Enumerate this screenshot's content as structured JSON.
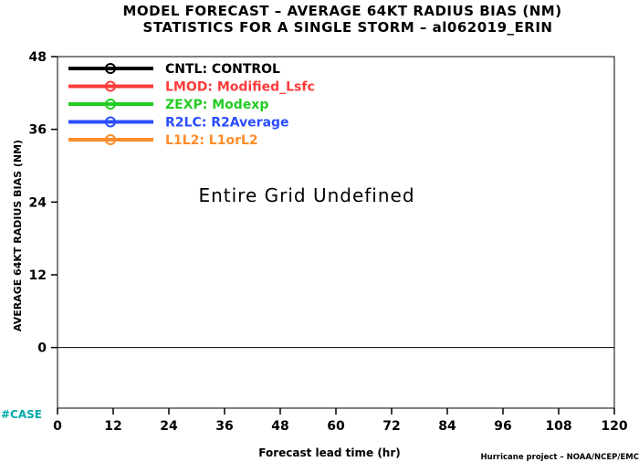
{
  "chart_data": {
    "type": "line",
    "title": "MODEL FORECAST – AVERAGE 64KT RADIUS BIAS (NM)",
    "subtitle": "STATISTICS FOR A SINGLE STORM – al062019_ERIN",
    "xlabel": "Forecast lead time (hr)",
    "ylabel": "AVERAGE 64KT RADIUS BIAS (NM)",
    "x_ticks": [
      0,
      12,
      24,
      36,
      48,
      60,
      72,
      84,
      96,
      108,
      120
    ],
    "y_ticks": [
      0,
      12,
      24,
      36,
      48
    ],
    "xlim": [
      0,
      120
    ],
    "ylim": [
      -10,
      48
    ],
    "zero_line": 0,
    "grid": false,
    "legend_position": "top-left",
    "annotation": "Entire Grid Undefined",
    "series": [
      {
        "name": "CNTL: CONTROL",
        "color": "#000000",
        "values": []
      },
      {
        "name": "LMOD: Modified_Lsfc",
        "color": "#ff3b3b",
        "values": []
      },
      {
        "name": "ZEXP: Modexp",
        "color": "#22cc22",
        "values": []
      },
      {
        "name": "R2LC: R2Average",
        "color": "#2b4dff",
        "values": []
      },
      {
        "name": "L1L2: L1orL2",
        "color": "#ff8c2a",
        "values": []
      }
    ]
  },
  "footer": {
    "case_label": "#CASE",
    "case_color": "#00aaaa",
    "credit": "Hurricane project – NOAA/NCEP/EMC"
  }
}
